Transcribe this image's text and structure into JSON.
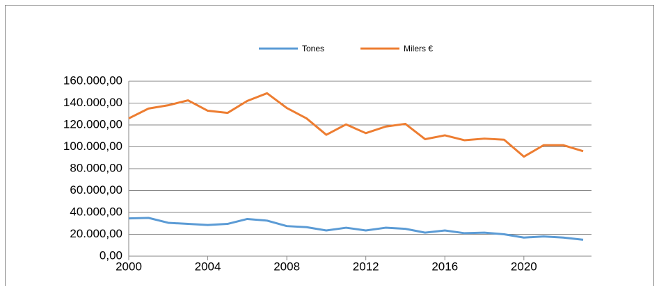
{
  "chart_data": {
    "type": "line",
    "x": [
      2000,
      2001,
      2002,
      2003,
      2004,
      2005,
      2006,
      2007,
      2008,
      2009,
      2010,
      2011,
      2012,
      2013,
      2014,
      2015,
      2016,
      2017,
      2018,
      2019,
      2020,
      2021,
      2022,
      2023
    ],
    "series": [
      {
        "name": "Tones",
        "color": "#5b9bd5",
        "values": [
          34500,
          35000,
          30500,
          29500,
          28500,
          29500,
          34000,
          32500,
          27500,
          26500,
          23500,
          26000,
          23500,
          26000,
          25000,
          21500,
          23500,
          21000,
          21500,
          20000,
          17000,
          18000,
          17000,
          15000
        ]
      },
      {
        "name": "Milers €",
        "color": "#ed7d31",
        "values": [
          126000,
          135000,
          138000,
          142500,
          133000,
          131000,
          142000,
          149000,
          135500,
          126000,
          111000,
          120500,
          112500,
          118500,
          121000,
          107000,
          110500,
          106000,
          107500,
          106500,
          91000,
          101500,
          101500,
          96000
        ]
      }
    ],
    "xlim": [
      2000,
      2023
    ],
    "xticks": [
      2000,
      2004,
      2008,
      2012,
      2016,
      2020
    ],
    "ylim": [
      0,
      160000
    ],
    "yticks": [
      {
        "value": 0,
        "label": "0,00"
      },
      {
        "value": 20000,
        "label": "20.000,00"
      },
      {
        "value": 40000,
        "label": "40.000,00"
      },
      {
        "value": 60000,
        "label": "60.000,00"
      },
      {
        "value": 80000,
        "label": "80.000,00"
      },
      {
        "value": 100000,
        "label": "100.000,00"
      },
      {
        "value": 120000,
        "label": "120.000,00"
      },
      {
        "value": 140000,
        "label": "140.000,00"
      },
      {
        "value": 160000,
        "label": "160.000,00"
      }
    ],
    "grid": true,
    "legend": "top"
  }
}
